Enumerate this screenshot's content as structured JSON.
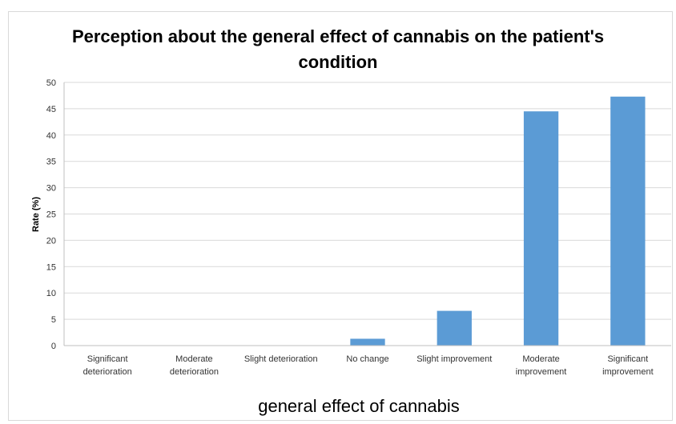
{
  "chart_data": {
    "type": "bar",
    "title": "Perception about the general effect of cannabis on the patient's condition",
    "xlabel": "general effect of cannabis",
    "ylabel": "Rate (%)",
    "ylim": [
      0,
      50
    ],
    "yticks": [
      0,
      5,
      10,
      15,
      20,
      25,
      30,
      35,
      40,
      45,
      50
    ],
    "grid": true,
    "categories": [
      "Significant deterioration",
      "Moderate deterioration",
      "Slight deterioration",
      "No change",
      "Slight improvement",
      "Moderate improvement",
      "Significant improvement"
    ],
    "values": [
      0,
      0,
      0,
      1.3,
      6.6,
      44.5,
      47.3
    ],
    "bar_color": "#5b9bd5"
  }
}
